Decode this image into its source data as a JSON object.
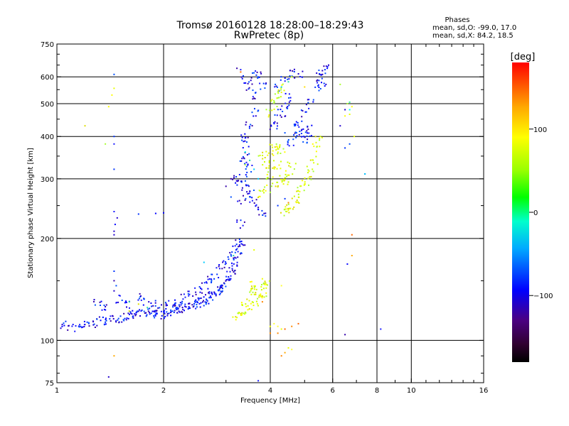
{
  "chart_data": {
    "type": "scatter",
    "title": "Tromsø 20160128 18:28:00–18:29:43",
    "subtitle": "RwPretec (8p)",
    "stats": {
      "heading": "Phases",
      "line1": "mean, sd,O: -99.0, 17.0",
      "line2": "mean, sd,X:  84.2, 18.5"
    },
    "xlabel": "Frequency [MHz]",
    "ylabel": "Stationary phase Virtual Height [km]",
    "x_scale": "log",
    "y_scale": "log",
    "xlim": [
      1,
      16
    ],
    "ylim": [
      75,
      750
    ],
    "x_ticks": [
      {
        "value": 1,
        "label": "1"
      },
      {
        "value": 2,
        "label": "2"
      },
      {
        "value": 4,
        "label": "4"
      },
      {
        "value": 6,
        "label": "6"
      },
      {
        "value": 8,
        "label": "8"
      },
      {
        "value": 10,
        "label": "10"
      },
      {
        "value": 16,
        "label": "16"
      }
    ],
    "x_grid": [
      2,
      4,
      6,
      8,
      10
    ],
    "y_ticks": [
      {
        "value": 75,
        "label": "75"
      },
      {
        "value": 100,
        "label": "100"
      },
      {
        "value": 200,
        "label": "200"
      },
      {
        "value": 300,
        "label": "300"
      },
      {
        "value": 400,
        "label": "400"
      },
      {
        "value": 500,
        "label": "500"
      },
      {
        "value": 600,
        "label": "600"
      },
      {
        "value": 750,
        "label": "750"
      }
    ],
    "y_grid": [
      100,
      200,
      300,
      400,
      500,
      600
    ],
    "grid": true,
    "colorbar": {
      "label": "[deg]",
      "range": [
        -180,
        180
      ],
      "ticks": [
        {
          "value": 100,
          "label": "100"
        },
        {
          "value": 0,
          "label": "0"
        },
        {
          "value": -100,
          "label": "−100"
        }
      ]
    },
    "series": [
      {
        "traces": [
          [
            1.05,
            111
          ],
          [
            1.1,
            110
          ],
          [
            1.15,
            109
          ],
          [
            1.2,
            111
          ],
          [
            1.25,
            112
          ],
          [
            1.3,
            113
          ],
          [
            1.35,
            114
          ],
          [
            1.4,
            113
          ],
          [
            1.45,
            115
          ],
          [
            1.5,
            116
          ],
          [
            1.55,
            117
          ],
          [
            1.6,
            118
          ],
          [
            1.65,
            119
          ],
          [
            1.7,
            120
          ],
          [
            1.75,
            121
          ],
          [
            1.8,
            121
          ],
          [
            1.85,
            121
          ],
          [
            1.9,
            120
          ],
          [
            1.95,
            119
          ],
          [
            2.0,
            119
          ],
          [
            2.05,
            120
          ],
          [
            2.1,
            121
          ],
          [
            2.15,
            122
          ],
          [
            2.2,
            123
          ],
          [
            2.25,
            124
          ],
          [
            2.3,
            125
          ],
          [
            2.35,
            126
          ],
          [
            2.4,
            127
          ],
          [
            2.45,
            128
          ],
          [
            2.5,
            129
          ],
          [
            2.55,
            130
          ],
          [
            2.6,
            131
          ],
          [
            2.65,
            132
          ],
          [
            2.7,
            134
          ],
          [
            2.75,
            136
          ],
          [
            2.8,
            138
          ],
          [
            2.85,
            140
          ],
          [
            2.9,
            142
          ],
          [
            2.95,
            145
          ],
          [
            3.0,
            148
          ],
          [
            3.05,
            152
          ],
          [
            3.1,
            157
          ],
          [
            3.15,
            163
          ],
          [
            3.2,
            170
          ],
          [
            3.25,
            180
          ],
          [
            3.28,
            195
          ],
          [
            3.3,
            220
          ],
          [
            3.32,
            260
          ],
          [
            3.35,
            300
          ],
          [
            3.38,
            340
          ],
          [
            3.4,
            380
          ],
          [
            1.3,
            130
          ],
          [
            1.35,
            125
          ],
          [
            1.5,
            132
          ],
          [
            1.6,
            128
          ],
          [
            1.7,
            135
          ],
          [
            1.8,
            130
          ],
          [
            1.9,
            128
          ],
          [
            2.0,
            127
          ],
          [
            2.1,
            128
          ],
          [
            2.2,
            130
          ],
          [
            2.3,
            133
          ],
          [
            2.4,
            136
          ],
          [
            2.5,
            140
          ],
          [
            2.6,
            145
          ],
          [
            2.7,
            150
          ],
          [
            2.8,
            156
          ],
          [
            2.9,
            163
          ],
          [
            3.0,
            170
          ],
          [
            3.1,
            178
          ],
          [
            3.2,
            186
          ],
          [
            3.3,
            196
          ],
          [
            3.2,
            300
          ],
          [
            3.3,
            290
          ],
          [
            3.4,
            280
          ],
          [
            3.5,
            270
          ],
          [
            3.6,
            258
          ],
          [
            3.7,
            248
          ],
          [
            3.8,
            238
          ],
          [
            3.5,
            320
          ],
          [
            3.4,
            350
          ],
          [
            3.4,
            400
          ],
          [
            3.5,
            430
          ],
          [
            3.6,
            470
          ],
          [
            3.5,
            560
          ],
          [
            3.4,
            590
          ],
          [
            3.6,
            600
          ],
          [
            3.7,
            610
          ],
          [
            3.8,
            560
          ],
          [
            3.6,
            530
          ],
          [
            4.6,
            380
          ],
          [
            4.7,
            400
          ],
          [
            4.8,
            420
          ],
          [
            4.9,
            410
          ],
          [
            5.0,
            390
          ],
          [
            5.1,
            400
          ],
          [
            5.2,
            420
          ],
          [
            4.8,
            440
          ],
          [
            5.0,
            470
          ],
          [
            5.2,
            500
          ],
          [
            5.4,
            560
          ],
          [
            5.5,
            600
          ],
          [
            5.6,
            620
          ],
          [
            5.7,
            640
          ],
          [
            5.6,
            580
          ],
          [
            4.1,
            430
          ],
          [
            4.2,
            450
          ],
          [
            4.3,
            470
          ],
          [
            4.4,
            490
          ],
          [
            4.5,
            520
          ],
          [
            4.2,
            560
          ],
          [
            4.4,
            600
          ],
          [
            4.6,
            620
          ],
          [
            4.8,
            610
          ]
        ],
        "points": [
          [
            1.45,
            610
          ],
          [
            1.45,
            400
          ],
          [
            1.45,
            380
          ],
          [
            1.45,
            320
          ],
          [
            1.45,
            240
          ],
          [
            1.48,
            230
          ],
          [
            1.46,
            220
          ],
          [
            1.45,
            210
          ],
          [
            1.45,
            205
          ],
          [
            1.45,
            160
          ],
          [
            1.45,
            150
          ],
          [
            1.47,
            145
          ],
          [
            1.45,
            140
          ],
          [
            1.4,
            78
          ],
          [
            1.7,
            236
          ],
          [
            1.9,
            237
          ],
          [
            2.0,
            238
          ],
          [
            3.22,
            636
          ],
          [
            3.3,
            630
          ],
          [
            3.1,
            300
          ],
          [
            3.0,
            285
          ],
          [
            3.1,
            265
          ],
          [
            3.2,
            175
          ],
          [
            3.15,
            175
          ],
          [
            4.4,
            410
          ],
          [
            6.5,
            480
          ],
          [
            6.5,
            370
          ],
          [
            6.7,
            380
          ],
          [
            7.4,
            310
          ],
          [
            6.5,
            104
          ],
          [
            6.6,
            168
          ],
          [
            8.2,
            108
          ],
          [
            6.3,
            430
          ],
          [
            3.7,
            76
          ],
          [
            4.2,
            250
          ],
          [
            4.4,
            262
          ]
        ]
      },
      {
        "traces": [
          [
            3.2,
            118
          ],
          [
            3.3,
            120
          ],
          [
            3.4,
            122
          ],
          [
            3.5,
            125
          ],
          [
            3.6,
            130
          ],
          [
            3.7,
            135
          ],
          [
            3.8,
            138
          ],
          [
            3.7,
            142
          ],
          [
            3.8,
            146
          ],
          [
            3.9,
            148
          ],
          [
            3.6,
            145
          ],
          [
            3.5,
            140
          ],
          [
            3.4,
            130
          ],
          [
            3.8,
            350
          ],
          [
            3.9,
            330
          ],
          [
            4.0,
            320
          ],
          [
            4.0,
            300
          ],
          [
            3.9,
            280
          ],
          [
            3.8,
            270
          ],
          [
            4.0,
            360
          ],
          [
            4.1,
            380
          ],
          [
            4.2,
            370
          ],
          [
            4.3,
            360
          ],
          [
            4.0,
            470
          ],
          [
            4.1,
            500
          ],
          [
            4.2,
            530
          ],
          [
            4.3,
            560
          ],
          [
            4.4,
            240
          ],
          [
            4.5,
            245
          ],
          [
            4.6,
            250
          ],
          [
            4.7,
            260
          ],
          [
            4.8,
            270
          ],
          [
            4.9,
            280
          ],
          [
            5.0,
            290
          ],
          [
            5.1,
            300
          ],
          [
            5.2,
            320
          ],
          [
            5.3,
            340
          ],
          [
            5.4,
            370
          ],
          [
            5.5,
            390
          ],
          [
            4.3,
            300
          ],
          [
            4.4,
            295
          ],
          [
            4.5,
            310
          ],
          [
            4.6,
            330
          ],
          [
            4.2,
            330
          ],
          [
            4.1,
            290
          ]
        ],
        "points": [
          [
            1.4,
            490
          ],
          [
            1.45,
            555
          ],
          [
            1.43,
            530
          ],
          [
            1.37,
            380
          ],
          [
            1.2,
            430
          ],
          [
            6.6,
            500
          ],
          [
            6.8,
            490
          ],
          [
            6.5,
            460
          ],
          [
            6.7,
            465
          ],
          [
            6.9,
            400
          ],
          [
            6.3,
            570
          ],
          [
            4.3,
            540
          ],
          [
            4.2,
            520
          ],
          [
            3.4,
            330
          ],
          [
            3.6,
            185
          ],
          [
            3.9,
            135
          ],
          [
            1.6,
            122
          ],
          [
            1.7,
            128
          ],
          [
            4.6,
            600
          ]
        ]
      },
      {
        "traces": [],
        "points": [
          [
            3.3,
            620
          ],
          [
            3.8,
            130
          ],
          [
            4.0,
            105
          ],
          [
            4.2,
            105
          ],
          [
            4.4,
            108
          ],
          [
            4.6,
            110
          ],
          [
            4.8,
            112
          ],
          [
            4.5,
            255
          ],
          [
            6.8,
            205
          ],
          [
            6.8,
            178
          ],
          [
            4.4,
            92
          ],
          [
            4.3,
            90
          ],
          [
            1.45,
            90
          ]
        ]
      },
      {
        "traces": [],
        "points": [
          [
            4.0,
            110
          ],
          [
            4.1,
            112
          ],
          [
            4.2,
            110
          ],
          [
            4.3,
            108
          ],
          [
            4.5,
            95
          ],
          [
            4.6,
            94
          ],
          [
            5.0,
            560
          ],
          [
            3.8,
            152
          ],
          [
            4.3,
            145
          ]
        ]
      },
      {
        "traces": [],
        "points": [
          [
            3.15,
            178
          ],
          [
            3.4,
            360
          ],
          [
            3.5,
            340
          ],
          [
            3.6,
            320
          ],
          [
            3.7,
            300
          ],
          [
            2.6,
            170
          ],
          [
            1.6,
            130
          ],
          [
            1.8,
            125
          ],
          [
            4.3,
            560
          ],
          [
            4.5,
            580
          ],
          [
            6.7,
            505
          ],
          [
            6.7,
            480
          ],
          [
            7.4,
            310
          ]
        ]
      }
    ]
  }
}
